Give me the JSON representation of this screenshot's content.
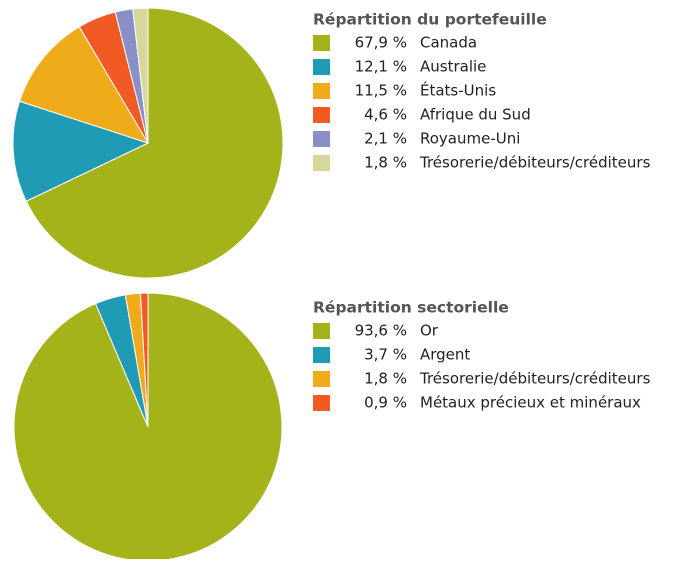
{
  "chart_data": [
    {
      "type": "pie",
      "title": "Répartition du portefeuille",
      "categories": [
        "Canada",
        "Australie",
        "États-Unis",
        "Afrique du Sud",
        "Royaume-Uni",
        "Trésorerie/débiteurs/créditeurs"
      ],
      "values": [
        67.9,
        12.1,
        11.5,
        4.6,
        2.1,
        1.8
      ],
      "value_labels": [
        "67,9 %",
        "12,1 %",
        "11,5 %",
        "4,6 %",
        "2,1 %",
        "1,8 %"
      ],
      "colors": [
        "#a5b31a",
        "#1f9bb5",
        "#f0ab1b",
        "#f15a24",
        "#8b8fc7",
        "#d5d89a"
      ]
    },
    {
      "type": "pie",
      "title": "Répartition sectorielle",
      "categories": [
        "Or",
        "Argent",
        "Trésorerie/débiteurs/créditeurs",
        "Métaux précieux et minéraux"
      ],
      "values": [
        93.6,
        3.7,
        1.8,
        0.9
      ],
      "value_labels": [
        "93,6 %",
        "3,7 %",
        "1,8 %",
        "0,9 %"
      ],
      "colors": [
        "#a5b31a",
        "#1f9bb5",
        "#f0ab1b",
        "#f15a24"
      ]
    }
  ]
}
